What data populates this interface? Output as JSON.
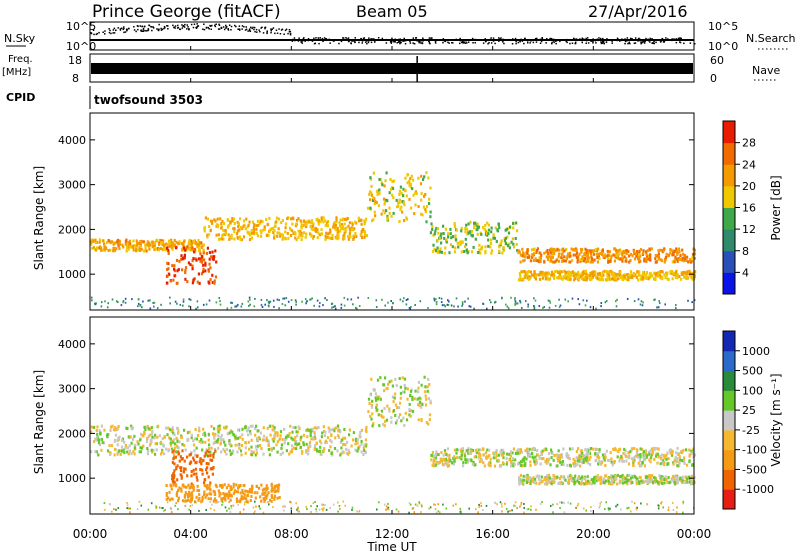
{
  "header": {
    "station": "Prince George (fitACF)",
    "beam": "Beam 05",
    "date": "27/Apr/2016"
  },
  "labels": {
    "nsky": "N.Sky",
    "nsearch": "N.Search",
    "freq": "Freq.",
    "freq_unit": "[MHz]",
    "nave": "Nave",
    "cpid": "CPID",
    "cpid_value": "twofsound 3503",
    "xlabel": "Time UT",
    "ylabel": "Slant Range [km]",
    "power_label": "Power [dB]",
    "velocity_label": "Velocity [m s⁻¹]"
  },
  "ticks": {
    "noise_left": [
      "10^5",
      "10^0"
    ],
    "noise_right": [
      "10^5",
      "10^0"
    ],
    "freq_left": [
      "18",
      "8"
    ],
    "freq_right": [
      "60",
      "0"
    ],
    "time": [
      "00:00",
      "04:00",
      "08:00",
      "12:00",
      "16:00",
      "20:00",
      "00:00"
    ],
    "range": [
      "1000",
      "2000",
      "3000",
      "4000"
    ],
    "power": [
      "4",
      "8",
      "12",
      "16",
      "20",
      "24",
      "28"
    ],
    "velocity": [
      "-1000",
      "-500",
      "-100",
      "-25",
      "25",
      "100",
      "500",
      "1000"
    ]
  },
  "colors": {
    "power_scale": [
      "#0a14e6",
      "#2a4fb8",
      "#2f8a6c",
      "#3fa84a",
      "#f0c800",
      "#f59a00",
      "#f26b00",
      "#e81c00"
    ],
    "velocity_scale": [
      "#e61e14",
      "#f06400",
      "#f59a14",
      "#f5b830",
      "#c8c8c8",
      "#64c828",
      "#2a8a3c",
      "#2a6ac8",
      "#1428b4"
    ],
    "background": "#ffffff"
  },
  "chart_data": [
    {
      "type": "line",
      "name": "noise-panel",
      "x_range": [
        "00:00",
        "00:00"
      ],
      "series_labels": [
        "N.Sky",
        "N.Search"
      ]
    },
    {
      "type": "line",
      "name": "frequency-panel",
      "x_range": [
        "00:00",
        "00:00"
      ],
      "series_labels": [
        "Freq.",
        "Nave"
      ]
    },
    {
      "type": "heatmap",
      "name": "power-panel",
      "xlabel": "Time UT",
      "ylabel": "Slant Range [km]",
      "x_hours": [
        0,
        24
      ],
      "ylim": [
        200,
        4600
      ],
      "colorbar_label": "Power [dB]",
      "colorbar_ticks": [
        4,
        8,
        12,
        16,
        20,
        24,
        28
      ],
      "features": [
        {
          "t": [
            0,
            4.5
          ],
          "range": [
            1550,
            1800
          ],
          "power": 22
        },
        {
          "t": [
            3,
            5
          ],
          "range": [
            800,
            1650
          ],
          "power": 30
        },
        {
          "t": [
            4.5,
            11
          ],
          "range": [
            1800,
            2300
          ],
          "power": 20
        },
        {
          "t": [
            11,
            13.5
          ],
          "range": [
            2200,
            3300
          ],
          "power": 18
        },
        {
          "t": [
            13.5,
            17
          ],
          "range": [
            1500,
            2200
          ],
          "power": 16
        },
        {
          "t": [
            17,
            24
          ],
          "range": [
            1300,
            1600
          ],
          "power": 24
        },
        {
          "t": [
            17,
            24
          ],
          "range": [
            900,
            1100
          ],
          "power": 20
        }
      ]
    },
    {
      "type": "heatmap",
      "name": "velocity-panel",
      "xlabel": "Time UT",
      "ylabel": "Slant Range [km]",
      "x_hours": [
        0,
        24
      ],
      "ylim": [
        200,
        4600
      ],
      "colorbar_label": "Velocity [m s⁻¹]",
      "colorbar_ticks": [
        -1000,
        -500,
        -100,
        -25,
        25,
        100,
        500,
        1000
      ],
      "features": [
        {
          "t": [
            0,
            11
          ],
          "range": [
            1550,
            2200
          ],
          "velocity": 0
        },
        {
          "t": [
            3.2,
            5
          ],
          "range": [
            900,
            1650
          ],
          "velocity": -900
        },
        {
          "t": [
            3,
            7.5
          ],
          "range": [
            500,
            900
          ],
          "velocity": -400
        },
        {
          "t": [
            11,
            13.5
          ],
          "range": [
            2200,
            3300
          ],
          "velocity": 0
        },
        {
          "t": [
            13.5,
            24
          ],
          "range": [
            1300,
            1700
          ],
          "velocity": 0
        },
        {
          "t": [
            17,
            24
          ],
          "range": [
            900,
            1100
          ],
          "velocity": 0
        }
      ]
    }
  ]
}
